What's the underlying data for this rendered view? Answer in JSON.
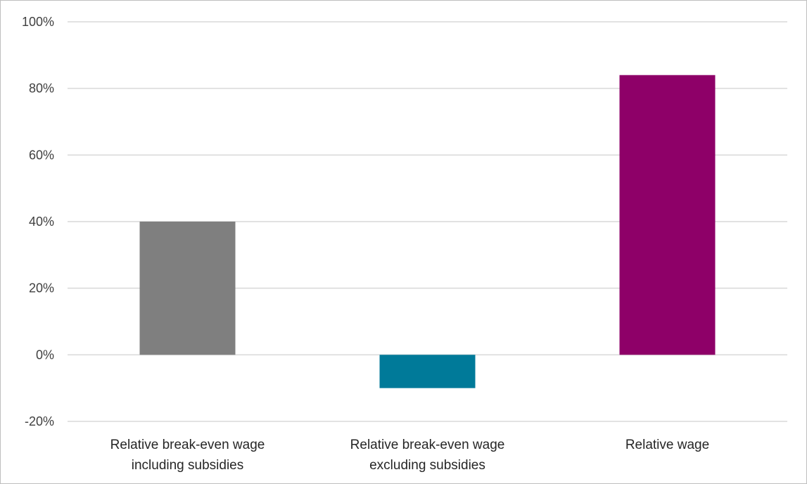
{
  "chart_data": {
    "type": "bar",
    "title": "",
    "xlabel": "",
    "ylabel": "",
    "categories": [
      [
        "Relative break-even wage",
        "including subsidies"
      ],
      [
        "Relative break-even wage",
        "excluding subsidies"
      ],
      [
        "Relative wage"
      ]
    ],
    "values": [
      40,
      -10,
      84
    ],
    "colors": [
      "#7f7f7f",
      "#007a99",
      "#8e0068"
    ],
    "ylim": [
      -20,
      100
    ],
    "yticks": [
      -20,
      0,
      20,
      40,
      60,
      80,
      100
    ],
    "ytick_labels": [
      "-20%",
      "0%",
      "20%",
      "40%",
      "60%",
      "80%",
      "100%"
    ],
    "grid": true,
    "legend": "none"
  }
}
